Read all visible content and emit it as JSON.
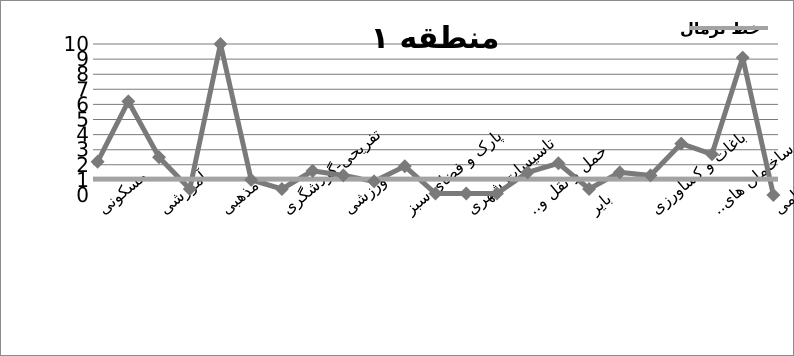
{
  "chart_data": {
    "type": "line",
    "title": "منطقه ۱",
    "categories": [
      "مسکونی",
      "",
      "آموزشی",
      "",
      "مذهبی",
      "",
      "تفریحی-گردشگری",
      "",
      "ورزشی",
      "",
      "پارک و فضای سبز",
      "",
      "تاسیسات شهری",
      "",
      "حمل و نقل و..",
      "",
      "بایر",
      "",
      "باغات و کشاورزی",
      "",
      "ساختمان های..",
      "",
      "نظامی"
    ],
    "series": [
      {
        "name": "",
        "color": "#7a7a7a",
        "values": [
          2.2,
          6.2,
          2.5,
          0.4,
          10,
          1.0,
          0.4,
          1.6,
          1.3,
          0.9,
          1.9,
          0.1,
          0.1,
          0.1,
          1.5,
          2.1,
          0.4,
          1.5,
          1.3,
          3.4,
          2.7,
          9.1,
          0.0
        ]
      },
      {
        "name": "خط نرمال",
        "color": "#a3a3a3",
        "values": [
          1.05,
          1.05,
          1.05,
          1.05,
          1.05,
          1.05,
          1.05,
          1.05,
          1.05,
          1.05,
          1.05,
          1.05,
          1.05,
          1.05,
          1.05,
          1.05,
          1.05,
          1.05,
          1.05,
          1.05,
          1.05,
          1.05,
          1.05
        ]
      }
    ],
    "ylim": [
      0,
      10
    ],
    "yticks": [
      "0",
      "1",
      "2",
      "3",
      "4",
      "5",
      "6",
      "7",
      "8",
      "9",
      "10"
    ],
    "grid": true,
    "legend_position": "top-right"
  }
}
